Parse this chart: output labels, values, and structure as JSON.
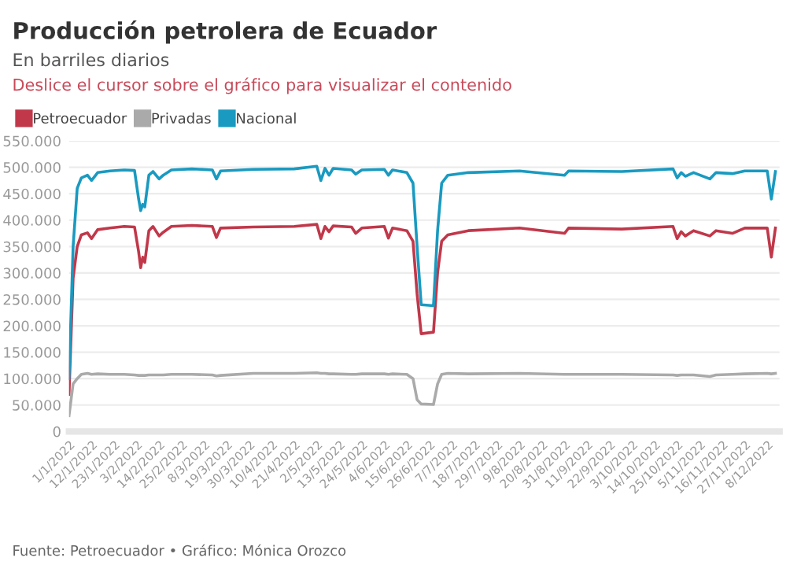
{
  "chart_data": {
    "type": "line",
    "title": "Producción petrolera de Ecuador",
    "subtitle": "En barriles diarios",
    "annotations": [
      "Deslice el cursor sobre el gráfico para visualizar el contenido",
      "Fuente: Petroecuador • Gráfico: Mónica Orozco"
    ],
    "x": [
      "2022-01-01",
      "2022-01-03",
      "2022-01-05",
      "2022-01-07",
      "2022-01-10",
      "2022-01-12",
      "2022-01-15",
      "2022-01-21",
      "2022-01-28",
      "2022-02-02",
      "2022-02-04",
      "2022-02-05",
      "2022-02-06",
      "2022-02-07",
      "2022-02-09",
      "2022-02-11",
      "2022-02-14",
      "2022-02-16",
      "2022-02-20",
      "2022-03-02",
      "2022-03-12",
      "2022-03-14",
      "2022-03-16",
      "2022-04-01",
      "2022-04-21",
      "2022-05-02",
      "2022-05-04",
      "2022-05-06",
      "2022-05-08",
      "2022-05-10",
      "2022-05-19",
      "2022-05-21",
      "2022-05-24",
      "2022-06-04",
      "2022-06-06",
      "2022-06-08",
      "2022-06-15",
      "2022-06-18",
      "2022-06-20",
      "2022-06-22",
      "2022-06-28",
      "2022-06-30",
      "2022-07-02",
      "2022-07-05",
      "2022-07-15",
      "2022-08-09",
      "2022-08-31",
      "2022-09-02",
      "2022-09-28",
      "2022-10-23",
      "2022-10-25",
      "2022-10-27",
      "2022-10-29",
      "2022-11-02",
      "2022-11-10",
      "2022-11-13",
      "2022-11-21",
      "2022-11-27",
      "2022-12-08",
      "2022-12-10",
      "2022-12-12"
    ],
    "series": [
      {
        "name": "Petroecuador",
        "color": "#c0384a",
        "values": [
          70000,
          290000,
          350000,
          372000,
          376000,
          365000,
          382000,
          385000,
          388000,
          387000,
          340000,
          310000,
          330000,
          320000,
          380000,
          388000,
          370000,
          377000,
          388000,
          390000,
          388000,
          367000,
          385000,
          387000,
          388000,
          392000,
          365000,
          388000,
          378000,
          389000,
          387000,
          375000,
          385000,
          388000,
          366000,
          385000,
          380000,
          360000,
          260000,
          185000,
          188000,
          300000,
          360000,
          372000,
          380000,
          385000,
          375000,
          385000,
          383000,
          388000,
          365000,
          378000,
          370000,
          380000,
          370000,
          380000,
          375000,
          385000,
          385000,
          330000,
          385000
        ]
      },
      {
        "name": "Privadas",
        "color": "#aaaaaa",
        "values": [
          30000,
          90000,
          100000,
          108000,
          110000,
          108000,
          109000,
          108000,
          108000,
          107000,
          106000,
          106000,
          106000,
          106000,
          107000,
          107000,
          107000,
          107000,
          108000,
          108000,
          107000,
          105000,
          106000,
          110000,
          110000,
          111000,
          110000,
          110000,
          109000,
          109000,
          108000,
          108000,
          109000,
          109000,
          108000,
          109000,
          108000,
          100000,
          60000,
          52000,
          51000,
          90000,
          108000,
          110000,
          109000,
          110000,
          108000,
          108000,
          108000,
          107000,
          106000,
          107000,
          107000,
          107000,
          104000,
          107000,
          108000,
          109000,
          110000,
          109000,
          110000
        ]
      },
      {
        "name": "Nacional",
        "color": "#1a9ac0",
        "values": [
          100000,
          350000,
          460000,
          480000,
          485000,
          475000,
          490000,
          493000,
          495000,
          494000,
          440000,
          418000,
          430000,
          425000,
          485000,
          492000,
          478000,
          485000,
          495000,
          497000,
          495000,
          478000,
          493000,
          496000,
          497000,
          502000,
          475000,
          498000,
          485000,
          498000,
          495000,
          487000,
          495000,
          496000,
          485000,
          495000,
          490000,
          470000,
          350000,
          240000,
          238000,
          380000,
          470000,
          485000,
          490000,
          493000,
          485000,
          493000,
          492000,
          497000,
          480000,
          490000,
          483000,
          490000,
          478000,
          490000,
          488000,
          493000,
          493000,
          440000,
          492000
        ]
      }
    ],
    "xlim": [
      "2022-01-01",
      "2022-12-14"
    ],
    "xticks": [
      {
        "value": "2022-01-01",
        "label": "1/1/2022"
      },
      {
        "value": "2022-01-12",
        "label": "12/1/2022"
      },
      {
        "value": "2022-01-23",
        "label": "23/1/2022"
      },
      {
        "value": "2022-02-03",
        "label": "3/2/2022"
      },
      {
        "value": "2022-02-14",
        "label": "14/2/2022"
      },
      {
        "value": "2022-02-25",
        "label": "25/2/2022"
      },
      {
        "value": "2022-03-08",
        "label": "8/3/2022"
      },
      {
        "value": "2022-03-19",
        "label": "19/3/2022"
      },
      {
        "value": "2022-03-30",
        "label": "30/3/2022"
      },
      {
        "value": "2022-04-10",
        "label": "10/4/2022"
      },
      {
        "value": "2022-04-21",
        "label": "21/4/2022"
      },
      {
        "value": "2022-05-02",
        "label": "2/5/2022"
      },
      {
        "value": "2022-05-13",
        "label": "13/5/2022"
      },
      {
        "value": "2022-05-24",
        "label": "24/5/2022"
      },
      {
        "value": "2022-06-04",
        "label": "4/6/2022"
      },
      {
        "value": "2022-06-15",
        "label": "15/6/2022"
      },
      {
        "value": "2022-06-26",
        "label": "26/6/2022"
      },
      {
        "value": "2022-07-07",
        "label": "7/7/2022"
      },
      {
        "value": "2022-07-18",
        "label": "18/7/2022"
      },
      {
        "value": "2022-07-29",
        "label": "29/7/2022"
      },
      {
        "value": "2022-08-09",
        "label": "9/8/2022"
      },
      {
        "value": "2022-08-20",
        "label": "20/8/2022"
      },
      {
        "value": "2022-08-31",
        "label": "31/8/2022"
      },
      {
        "value": "2022-09-11",
        "label": "11/9/2022"
      },
      {
        "value": "2022-09-22",
        "label": "22/9/2022"
      },
      {
        "value": "2022-10-03",
        "label": "3/10/2022"
      },
      {
        "value": "2022-10-14",
        "label": "14/10/2022"
      },
      {
        "value": "2022-10-25",
        "label": "25/10/2022"
      },
      {
        "value": "2022-11-05",
        "label": "5/11/2022"
      },
      {
        "value": "2022-11-16",
        "label": "16/11/2022"
      },
      {
        "value": "2022-11-27",
        "label": "27/11/2022"
      },
      {
        "value": "2022-12-08",
        "label": "8/12/2022"
      }
    ],
    "ylim": [
      0,
      550000
    ],
    "yticks": [
      0,
      {
        "value": 50000,
        "label": "50.000"
      },
      {
        "value": 100000,
        "label": "100.000"
      },
      {
        "value": 150000,
        "label": "150.000"
      },
      {
        "value": 200000,
        "label": "200.000"
      },
      {
        "value": 250000,
        "label": "250.000"
      },
      {
        "value": 300000,
        "label": "300.000"
      },
      {
        "value": 350000,
        "label": "350.000"
      },
      {
        "value": 400000,
        "label": "400.000"
      },
      {
        "value": 450000,
        "label": "450.000"
      },
      {
        "value": 500000,
        "label": "500.000"
      },
      {
        "value": 550000,
        "label": "550.000"
      }
    ],
    "grid": "y",
    "legend": "top left",
    "marker": "none",
    "line_style": "solid"
  }
}
